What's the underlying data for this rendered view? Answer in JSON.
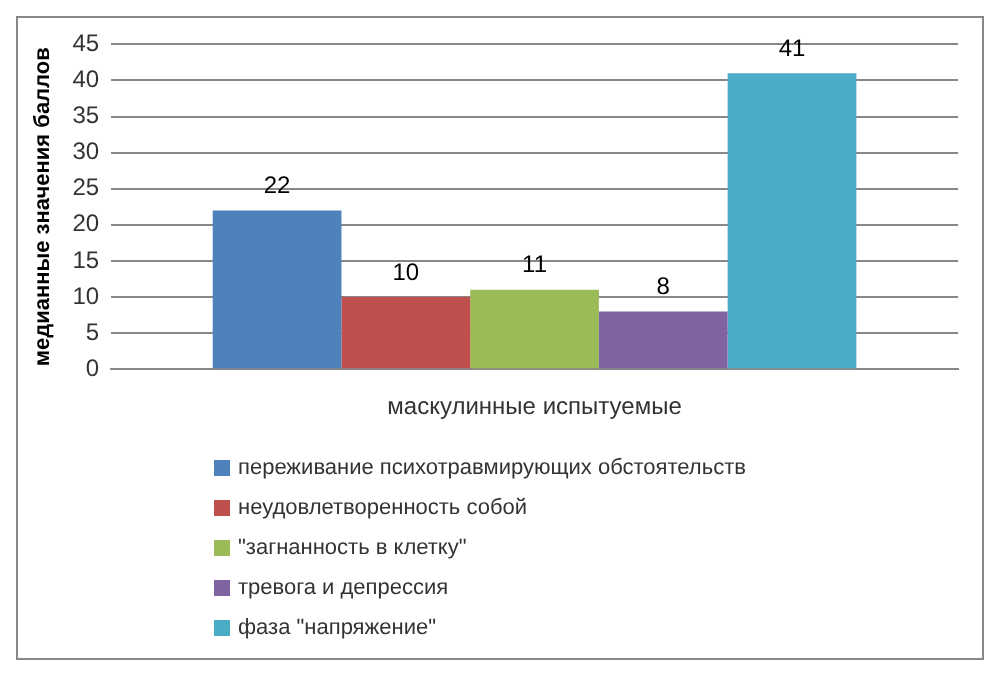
{
  "chart_data": {
    "type": "bar",
    "ylabel": "медианные значения баллов",
    "categories": [
      "маскулинные испытуемые"
    ],
    "series": [
      {
        "name": "переживание психотравмирующих обстоятельств",
        "color": "#4f81bd",
        "values": [
          22
        ]
      },
      {
        "name": "неудовлетворенность собой",
        "color": "#c0504d",
        "values": [
          10
        ]
      },
      {
        "name": "\"загнанность в клетку\"",
        "color": "#9bbb59",
        "values": [
          11
        ]
      },
      {
        "name": "тревога и депрессия",
        "color": "#8064a2",
        "values": [
          8
        ]
      },
      {
        "name": "фаза \"напряжение\"",
        "color": "#4bacc6",
        "values": [
          41
        ]
      }
    ],
    "ylim": [
      0,
      45
    ],
    "yticks": [
      0,
      5,
      10,
      15,
      20,
      25,
      30,
      35,
      40,
      45
    ],
    "grid": "y",
    "legend": "bottom",
    "data_labels": true
  }
}
